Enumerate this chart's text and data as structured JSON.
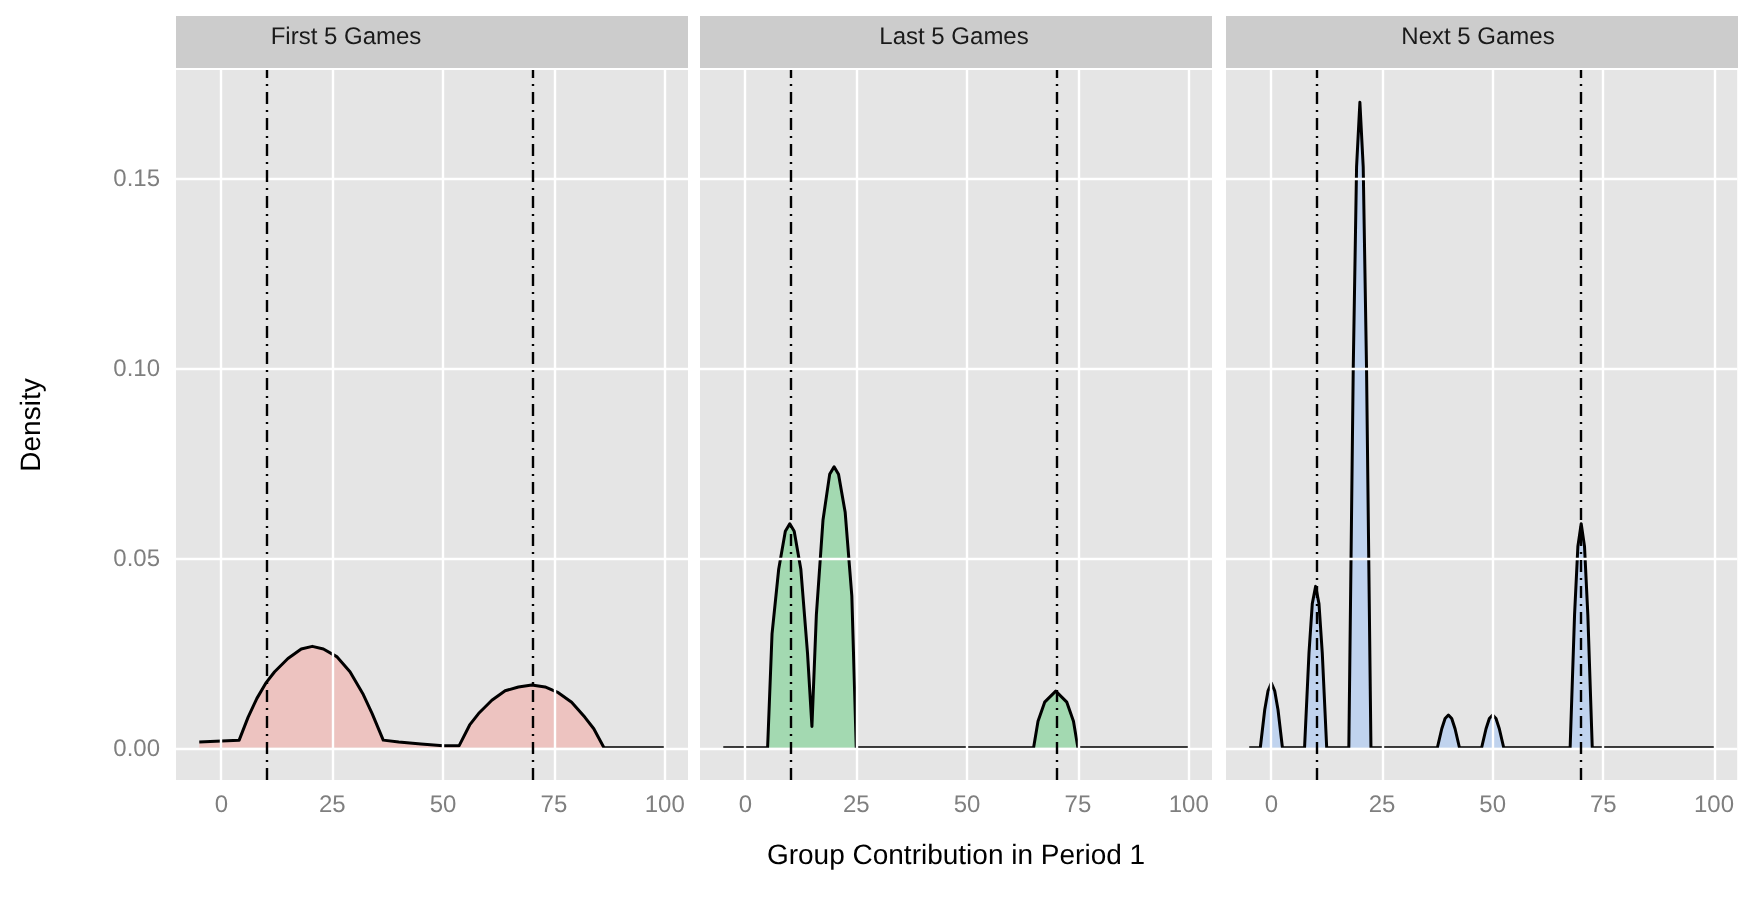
{
  "chart_data": [
    {
      "type": "area",
      "title": "First 5 Games",
      "ylabel": "Density",
      "color": "#edc3c0",
      "grid": true,
      "x": [
        -5,
        0,
        4,
        6,
        8,
        10,
        12,
        15,
        18,
        20.5,
        23,
        26,
        29,
        32,
        34,
        36.5,
        40,
        45,
        50,
        53.6,
        56,
        58,
        61,
        64,
        67,
        70,
        73,
        76,
        79,
        82,
        84,
        86.3,
        100
      ],
      "values": [
        0.0015,
        0.0018,
        0.002,
        0.008,
        0.013,
        0.017,
        0.02,
        0.0235,
        0.026,
        0.0267,
        0.026,
        0.024,
        0.02,
        0.014,
        0.009,
        0.002,
        0.0015,
        0.001,
        0.0005,
        0.0005,
        0.006,
        0.009,
        0.0125,
        0.015,
        0.016,
        0.0165,
        0.016,
        0.0145,
        0.012,
        0.008,
        0.005,
        0,
        0
      ],
      "xlim": [
        -10.25,
        105.25
      ],
      "xticks": [
        0,
        25,
        50,
        75,
        100
      ],
      "ylim": [
        -0.0085,
        0.1785
      ],
      "yticks": [
        {
          "value": 0,
          "label": "0.00"
        },
        {
          "value": 0.05,
          "label": "0.05"
        },
        {
          "value": 0.1,
          "label": "0.10"
        },
        {
          "value": 0.15,
          "label": "0.15"
        }
      ],
      "ref_lines": [
        {
          "axis": "x",
          "value": 10,
          "line_style": "dashed",
          "color": "#000000"
        },
        {
          "axis": "x",
          "value": 70,
          "line_style": "dashed",
          "color": "#000000"
        }
      ]
    },
    {
      "type": "area",
      "title": "Last 5 Games",
      "xlabel": "Group Contribution in Period 1",
      "color": "#a3d9b1",
      "grid": true,
      "tick_labels": "x",
      "x": [
        -5,
        5,
        6,
        7.5,
        9,
        10,
        11,
        12.5,
        14,
        15,
        16,
        17.5,
        19,
        20,
        21,
        22.5,
        24,
        25,
        65,
        66,
        67.5,
        70,
        72.5,
        74,
        75,
        100
      ],
      "values": [
        0,
        0,
        0.03,
        0.047,
        0.057,
        0.059,
        0.057,
        0.047,
        0.025,
        0.0056,
        0.035,
        0.06,
        0.072,
        0.074,
        0.072,
        0.062,
        0.04,
        0,
        0,
        0.007,
        0.012,
        0.0149,
        0.012,
        0.007,
        0,
        0
      ],
      "xlim": [
        -10.25,
        105.25
      ],
      "xticks": [
        0,
        25,
        50,
        75,
        100
      ],
      "ylim": [
        -0.0085,
        0.1785
      ],
      "yticks": [
        0,
        0.05,
        0.1,
        0.15
      ],
      "ref_lines": [
        {
          "axis": "x",
          "value": 10,
          "line_style": "dashed",
          "color": "#000000"
        },
        {
          "axis": "x",
          "value": 70,
          "line_style": "dashed",
          "color": "#000000"
        }
      ]
    },
    {
      "type": "area",
      "title": "Next 5 Games",
      "color": "#c0d3ee",
      "grid": true,
      "tick_labels": "x",
      "x": [
        -5,
        -2.5,
        -1.5,
        -0.75,
        0,
        0.75,
        1.5,
        2.5,
        7.5,
        8.5,
        9.25,
        10,
        10.75,
        11.5,
        12.5,
        17.5,
        18.5,
        19.25,
        20,
        20.75,
        21.5,
        22.5,
        37.5,
        38.5,
        39.25,
        40,
        40.75,
        41.5,
        42.5,
        47.5,
        48.5,
        49.25,
        50,
        50.75,
        51.5,
        52.5,
        67.5,
        68.5,
        69.25,
        70,
        70.75,
        71.5,
        72.5,
        100
      ],
      "values": [
        0,
        0,
        0.01,
        0.015,
        0.017,
        0.015,
        0.01,
        0,
        0,
        0.025,
        0.038,
        0.0425,
        0.038,
        0.025,
        0,
        0,
        0.1,
        0.153,
        0.17,
        0.153,
        0.1,
        0,
        0,
        0.005,
        0.0077,
        0.0086,
        0.0077,
        0.005,
        0,
        0,
        0.005,
        0.0077,
        0.0086,
        0.0077,
        0.005,
        0,
        0,
        0.035,
        0.053,
        0.059,
        0.053,
        0.035,
        0,
        0
      ],
      "xlim": [
        -10.25,
        105.25
      ],
      "xticks": [
        0,
        25,
        50,
        75,
        100
      ],
      "ylim": [
        -0.0085,
        0.1785
      ],
      "yticks": [
        0,
        0.05,
        0.1,
        0.15
      ],
      "ref_lines": [
        {
          "axis": "x",
          "value": 10,
          "line_style": "dashed",
          "color": "#000000"
        },
        {
          "axis": "x",
          "value": 70,
          "line_style": "dashed",
          "color": "#000000"
        }
      ]
    }
  ]
}
